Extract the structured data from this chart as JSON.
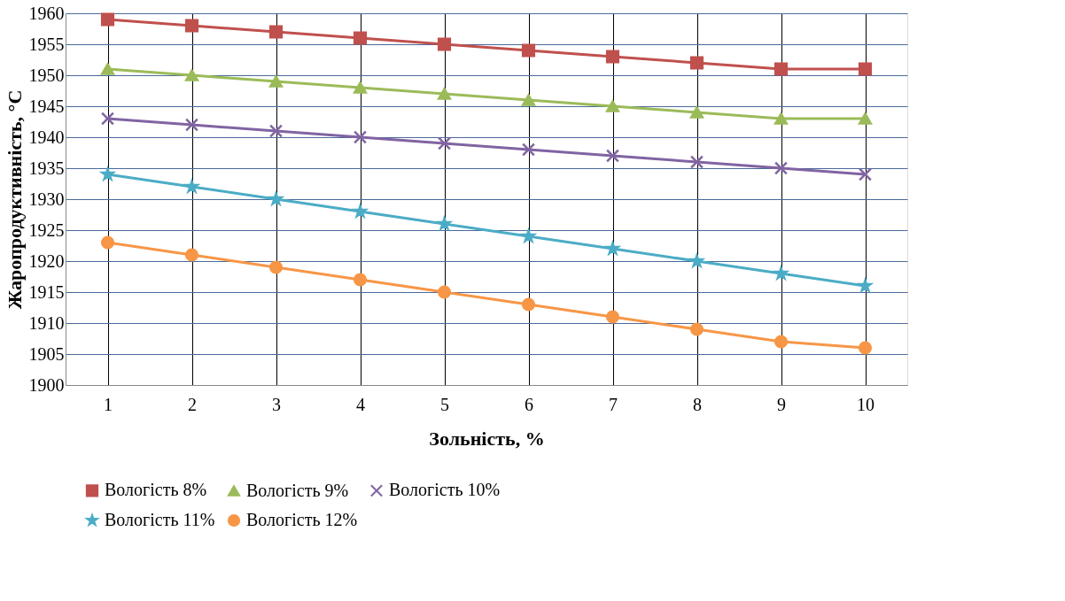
{
  "chart_data": {
    "type": "line",
    "xlabel": "Зольність, %",
    "ylabel": "Жаропродуктивність, °С",
    "categories": [
      "1",
      "2",
      "3",
      "4",
      "5",
      "6",
      "7",
      "8",
      "9",
      "10"
    ],
    "series": [
      {
        "name": "Вологість 8%",
        "color": "#c0504d",
        "marker": "square",
        "values": [
          1959,
          1958,
          1957,
          1956,
          1955,
          1954,
          1953,
          1952,
          1951,
          1951
        ]
      },
      {
        "name": "Вологість 9%",
        "color": "#9bbb59",
        "marker": "triangle",
        "values": [
          1951,
          1950,
          1949,
          1948,
          1947,
          1946,
          1945,
          1944,
          1943,
          1943
        ]
      },
      {
        "name": "Вологість 10%",
        "color": "#8064a2",
        "marker": "cross",
        "values": [
          1943,
          1942,
          1941,
          1940,
          1939,
          1938,
          1937,
          1936,
          1935,
          1934
        ]
      },
      {
        "name": "Вологість 11%",
        "color": "#4bacc6",
        "marker": "star",
        "values": [
          1934,
          1932,
          1930,
          1928,
          1926,
          1924,
          1922,
          1920,
          1918,
          1916
        ]
      },
      {
        "name": "Вологість 12%",
        "color": "#f79646",
        "marker": "circle",
        "values": [
          1923,
          1921,
          1919,
          1917,
          1915,
          1913,
          1911,
          1909,
          1907,
          1906
        ]
      }
    ],
    "ylim": [
      1900,
      1960
    ],
    "yticks": [
      1900,
      1905,
      1910,
      1915,
      1920,
      1925,
      1930,
      1935,
      1940,
      1945,
      1950,
      1955,
      1960
    ],
    "grid": true,
    "legend": "bottom",
    "line_style": "solid"
  }
}
